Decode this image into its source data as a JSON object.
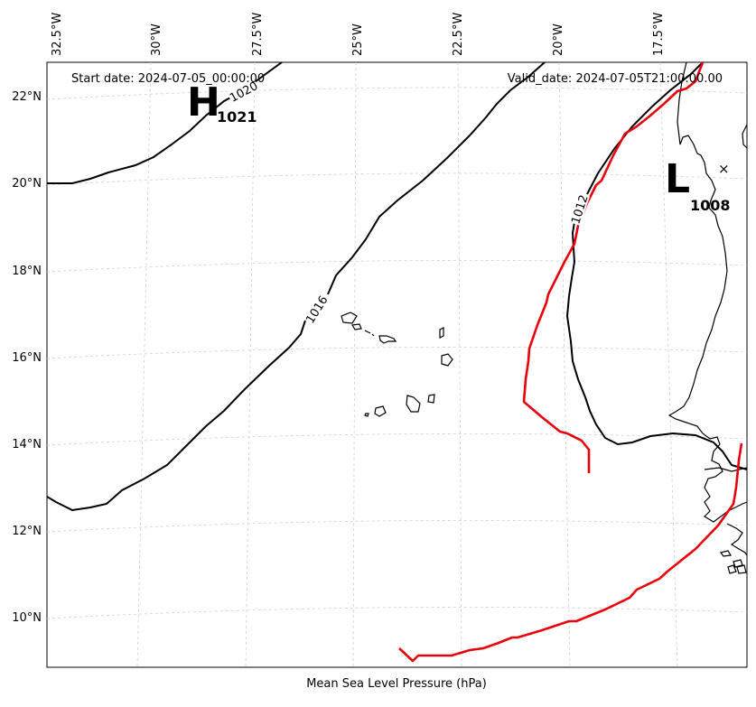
{
  "map": {
    "start_date": "Start date: 2024-07-05_00:00:00",
    "valid_date": "Valid_date: 2024-07-05T21:00:00.00",
    "xlabel": "Mean Sea Level Pressure (hPa)",
    "lon_labels": [
      "32.5°W",
      "30°W",
      "27.5°W",
      "25°W",
      "22.5°W",
      "20°W",
      "17.5°W"
    ],
    "lat_labels": [
      "22°N",
      "20°N",
      "18°N",
      "16°N",
      "14°N",
      "12°N",
      "10°N"
    ],
    "isobar_labels": [
      "1020",
      "1016",
      "1012"
    ],
    "high": {
      "letter": "H",
      "value": "1021"
    },
    "low": {
      "letter": "L",
      "value": "1008"
    },
    "low_marker": "×",
    "colors": {
      "isobar": "#000000",
      "track": "#e8000b",
      "grid": "#cfcfcf",
      "coast": "#000000"
    }
  }
}
